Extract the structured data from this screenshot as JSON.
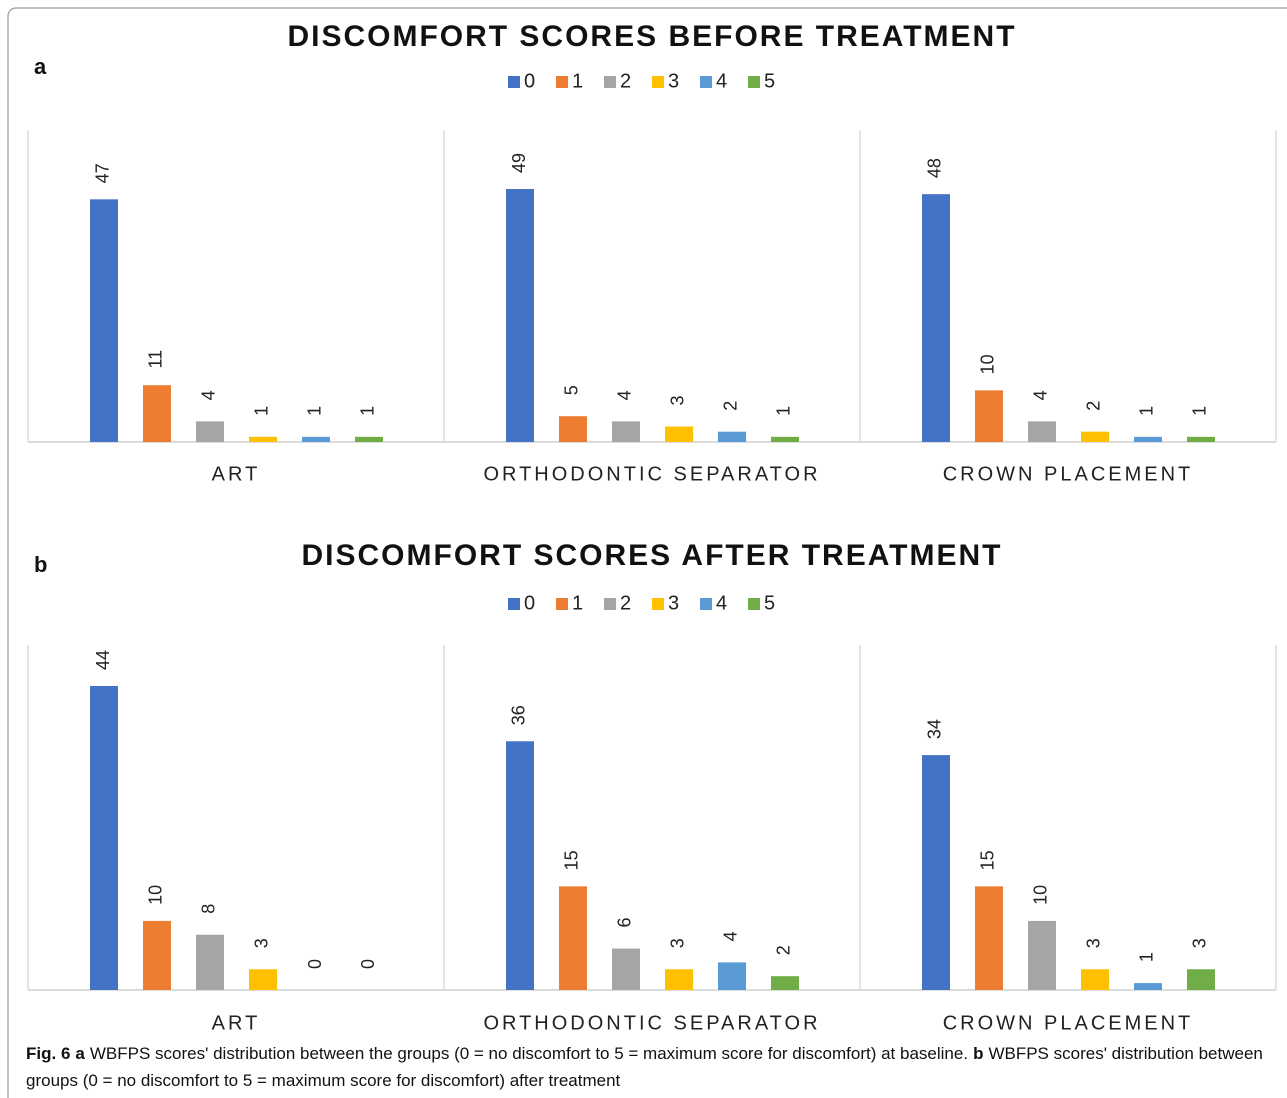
{
  "chart_data": [
    {
      "type": "bar",
      "panel_label": "a",
      "title": "DISCOMFORT SCORES BEFORE TREATMENT",
      "categories": [
        "ART",
        "ORTHODONTIC SEPARATOR",
        "CROWN PLACEMENT"
      ],
      "series": [
        {
          "name": "0",
          "color": "#4472c4",
          "values": [
            47,
            49,
            48
          ]
        },
        {
          "name": "1",
          "color": "#ed7d31",
          "values": [
            11,
            5,
            10
          ]
        },
        {
          "name": "2",
          "color": "#a5a5a5",
          "values": [
            4,
            4,
            4
          ]
        },
        {
          "name": "3",
          "color": "#ffc000",
          "values": [
            1,
            3,
            2
          ]
        },
        {
          "name": "4",
          "color": "#5b9bd5",
          "values": [
            1,
            2,
            1
          ]
        },
        {
          "name": "5",
          "color": "#70ad47",
          "values": [
            1,
            1,
            1
          ]
        }
      ]
    },
    {
      "type": "bar",
      "panel_label": "b",
      "title": "DISCOMFORT SCORES AFTER TREATMENT",
      "categories": [
        "ART",
        "ORTHODONTIC SEPARATOR",
        "CROWN PLACEMENT"
      ],
      "series": [
        {
          "name": "0",
          "color": "#4472c4",
          "values": [
            44,
            36,
            34
          ]
        },
        {
          "name": "1",
          "color": "#ed7d31",
          "values": [
            10,
            15,
            15
          ]
        },
        {
          "name": "2",
          "color": "#a5a5a5",
          "values": [
            8,
            6,
            10
          ]
        },
        {
          "name": "3",
          "color": "#ffc000",
          "values": [
            3,
            3,
            3
          ]
        },
        {
          "name": "4",
          "color": "#5b9bd5",
          "values": [
            0,
            4,
            1
          ]
        },
        {
          "name": "5",
          "color": "#70ad47",
          "values": [
            0,
            2,
            3
          ]
        }
      ]
    }
  ],
  "caption": {
    "parts": [
      {
        "text": "Fig. 6",
        "bold": true
      },
      {
        "text": "a",
        "bold": true
      },
      {
        "text": "WBFPS scores' distribution between the groups (0 = no discomfort to 5 = maximum score for discomfort) at baseline.",
        "bold": false
      },
      {
        "text": "b",
        "bold": true
      },
      {
        "text": "WBFPS scores' distribution between groups (0 = no discomfort to 5 = maximum score for discomfort) after treatment",
        "bold": false
      }
    ]
  }
}
